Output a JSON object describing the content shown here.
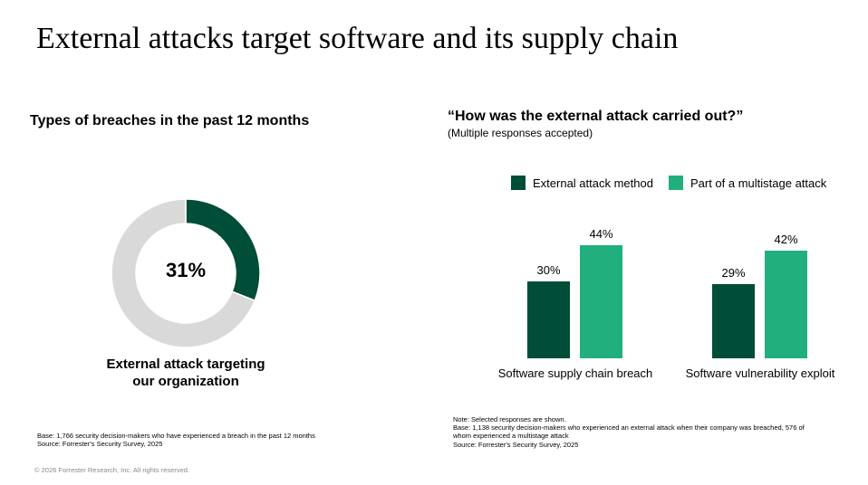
{
  "slide": {
    "title": "External attacks target software and its supply chain",
    "copyright": "© 2026 Forrester Research, Inc. All rights reserved."
  },
  "left_panel": {
    "title": "Types of breaches in the past 12 months",
    "donut_value_label": "31%",
    "donut_caption_line1": "External attack targeting",
    "donut_caption_line2": "our organization",
    "footnote_base": "Base: 1,766 security decision-makers who have experienced a breach in the past 12 months",
    "footnote_source": "Source: Forrester's Security Survey, 2025"
  },
  "right_panel": {
    "title": "“How was the external attack carried out?”",
    "subtitle": "(Multiple responses accepted)",
    "legend": [
      {
        "label": "External attack method",
        "color": "#004d38"
      },
      {
        "label": "Part of a multistage attack",
        "color": "#21b07d"
      }
    ],
    "footnote_note": "Note: Selected responses are shown.",
    "footnote_base_line1": "Base: 1,138 security decision-makers who experienced an external attack when their company was breached, 576 of",
    "footnote_base_line2": "whom experienced a multistage attack",
    "footnote_source": "Source: Forrester's Security Survey, 2025"
  },
  "colors": {
    "dark_green": "#004d38",
    "light_green": "#21b07d",
    "donut_rest": "#d9d9d9"
  },
  "chart_data": [
    {
      "type": "pie",
      "subtype": "donut",
      "title": "Types of breaches in the past 12 months",
      "categories": [
        "External attack targeting our organization",
        "Other"
      ],
      "values": [
        31,
        69
      ],
      "center_label": "31%",
      "colors": [
        "#004d38",
        "#d9d9d9"
      ]
    },
    {
      "type": "bar",
      "title": "“How was the external attack carried out?”",
      "subtitle": "(Multiple responses accepted)",
      "categories": [
        "Software supply chain breach",
        "Software vulnerability exploit"
      ],
      "series": [
        {
          "name": "External attack method",
          "values": [
            30,
            29
          ],
          "labels": [
            "30%",
            "29%"
          ],
          "color": "#004d38"
        },
        {
          "name": "Part of a multistage attack",
          "values": [
            44,
            42
          ],
          "labels": [
            "44%",
            "42%"
          ],
          "color": "#21b07d"
        }
      ],
      "xlabel": "",
      "ylabel": "",
      "ylim": [
        0,
        50
      ],
      "grid": false,
      "legend_position": "top"
    }
  ]
}
